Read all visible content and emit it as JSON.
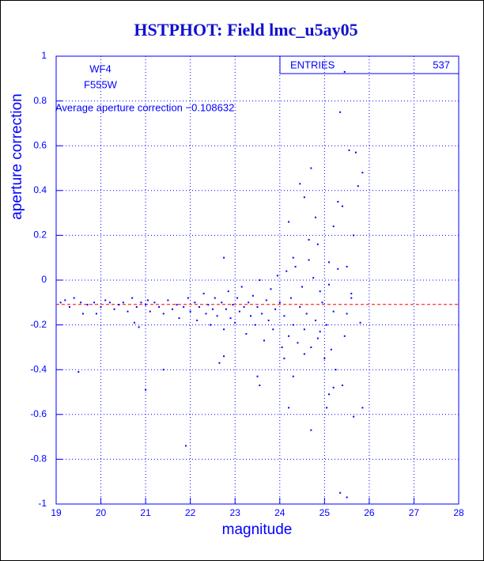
{
  "chart_data": {
    "type": "scatter",
    "title": "HSTPHOT: Field lmc_u5ay05",
    "xlabel": "magnitude",
    "ylabel": "aperture correction",
    "xlim": [
      19,
      28
    ],
    "xticks": [
      19,
      20,
      21,
      22,
      23,
      24,
      25,
      26,
      27,
      28
    ],
    "ylim": [
      -1,
      1
    ],
    "yticks": [
      -1,
      -0.8,
      -0.6,
      -0.4,
      -0.2,
      0,
      0.2,
      0.4,
      0.6,
      0.8,
      1
    ],
    "grid": true,
    "color": "#0000ff",
    "mean_line_color": "#ff0000",
    "stats_label": "ENTRIES",
    "entries": 537,
    "annotations": [
      "WF4",
      "F555W",
      "Average aperture correction −0.108632"
    ],
    "mean": -0.108632,
    "x": [
      25.35,
      25.55,
      25.7,
      24.7,
      25.85,
      25.75,
      24.45,
      24.55,
      25.4,
      25.3,
      24.8,
      24.2,
      25.2,
      25.65,
      24.65,
      24.85,
      25.1,
      24.3,
      22.75,
      24.65,
      25.5,
      25.6,
      25.5,
      25.8,
      21.0,
      21.4,
      20.85,
      19.9,
      20.75,
      19.5,
      25.05,
      25.35,
      25.5,
      25.85,
      25.65,
      24.7,
      25.2,
      25.4,
      25.1,
      23.55,
      23.5,
      22.65,
      22.75,
      21.9,
      24.1,
      24.55,
      24.3,
      25.15,
      24.9,
      24.2,
      25.45,
      19.1,
      19.2,
      19.3,
      19.4,
      19.55,
      19.6,
      19.7,
      19.85,
      20.0,
      20.1,
      20.2,
      20.3,
      20.4,
      20.5,
      20.6,
      20.7,
      20.8,
      20.9,
      21.0,
      21.05,
      21.1,
      21.2,
      21.3,
      21.4,
      21.5,
      21.6,
      21.7,
      21.75,
      21.85,
      21.95,
      22.0,
      22.1,
      22.15,
      22.2,
      22.3,
      22.35,
      22.4,
      22.45,
      22.5,
      22.55,
      22.6,
      22.7,
      22.75,
      22.8,
      22.85,
      22.9,
      22.95,
      23.0,
      23.05,
      23.1,
      23.15,
      23.2,
      23.25,
      23.3,
      23.35,
      23.4,
      23.45,
      23.5,
      23.55,
      23.6,
      23.65,
      23.7,
      23.75,
      23.8,
      23.85,
      23.9,
      23.95,
      24.0,
      24.05,
      24.1,
      24.15,
      24.2,
      24.25,
      24.3,
      24.35,
      24.4,
      24.45,
      24.5,
      24.55,
      24.6,
      24.7,
      24.75,
      24.8,
      24.85,
      24.9,
      24.95,
      25.0,
      25.05,
      25.1,
      25.2,
      25.25,
      25.3,
      25.45,
      25.6
    ],
    "values": [
      0.75,
      0.58,
      0.57,
      0.5,
      0.48,
      0.42,
      0.43,
      0.37,
      0.33,
      0.35,
      0.28,
      0.26,
      0.24,
      0.2,
      0.18,
      0.16,
      0.08,
      0.1,
      0.1,
      0.09,
      0.06,
      -0.06,
      -0.15,
      -0.19,
      -0.49,
      -0.4,
      -0.21,
      -0.15,
      -0.19,
      -0.41,
      -0.57,
      -0.95,
      -0.97,
      -0.57,
      -0.61,
      -0.67,
      -0.48,
      -0.47,
      -0.51,
      -0.47,
      -0.43,
      -0.37,
      -0.34,
      -0.74,
      -0.35,
      -0.33,
      -0.43,
      -0.31,
      -0.23,
      -0.57,
      0.93,
      -0.1,
      -0.09,
      -0.12,
      -0.08,
      -0.1,
      -0.15,
      -0.11,
      -0.1,
      -0.12,
      -0.09,
      -0.1,
      -0.13,
      -0.11,
      -0.1,
      -0.14,
      -0.08,
      -0.12,
      -0.1,
      -0.11,
      -0.09,
      -0.14,
      -0.1,
      -0.12,
      -0.15,
      -0.09,
      -0.13,
      -0.11,
      -0.17,
      -0.12,
      -0.08,
      -0.14,
      -0.1,
      -0.18,
      -0.12,
      -0.06,
      -0.15,
      -0.11,
      -0.2,
      -0.13,
      -0.08,
      -0.16,
      -0.1,
      -0.22,
      -0.13,
      -0.05,
      -0.17,
      -0.11,
      -0.19,
      -0.08,
      -0.14,
      -0.03,
      -0.12,
      -0.24,
      -0.1,
      -0.16,
      -0.07,
      -0.2,
      -0.12,
      0.0,
      -0.15,
      -0.27,
      -0.09,
      -0.18,
      -0.04,
      -0.22,
      -0.13,
      0.02,
      -0.1,
      -0.3,
      -0.16,
      0.04,
      -0.25,
      -0.08,
      -0.2,
      0.06,
      -0.28,
      -0.12,
      -0.03,
      -0.22,
      -0.15,
      -0.3,
      0.01,
      -0.18,
      -0.26,
      -0.05,
      -0.1,
      -0.35,
      -0.2,
      -0.02,
      -0.14,
      -0.4,
      0.05,
      -0.25,
      -0.08
    ]
  }
}
